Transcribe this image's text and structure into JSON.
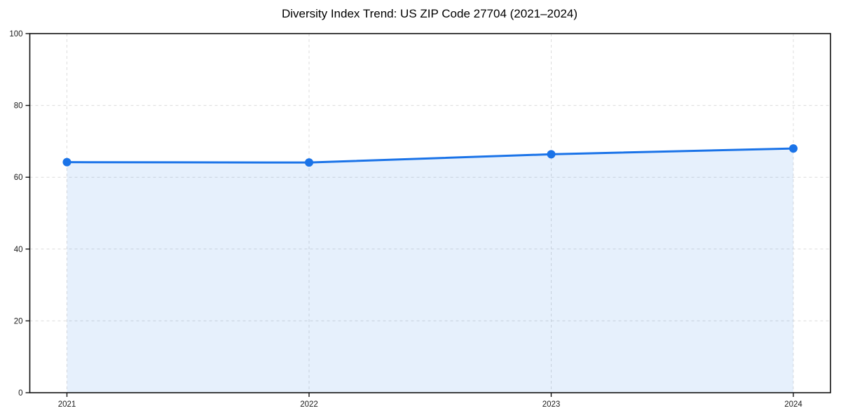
{
  "chart_data": {
    "type": "area",
    "title": "Diversity Index Trend: US ZIP Code 27704 (2021–2024)",
    "series_name": "Diversity Index",
    "categories": [
      "2021",
      "2022",
      "2023",
      "2024"
    ],
    "values": [
      64.2,
      64.1,
      66.4,
      68.0
    ],
    "xlabel": "",
    "ylabel": "",
    "ylim": [
      0,
      100
    ],
    "yticks": [
      0,
      20,
      40,
      60,
      80,
      100
    ],
    "grid": true,
    "grid_style": "dashed",
    "legend_position": "none",
    "marker": "circle",
    "colors": {
      "line": "#1a73e8",
      "marker": "#1a73e8",
      "fill": "#1a73e8",
      "fill_opacity": 0.11,
      "grid": "#dcdcdc",
      "spine": "#111111",
      "tick": "#111111",
      "tick_label": "#1a1a1a",
      "title": "#000000",
      "background": "#ffffff"
    }
  }
}
